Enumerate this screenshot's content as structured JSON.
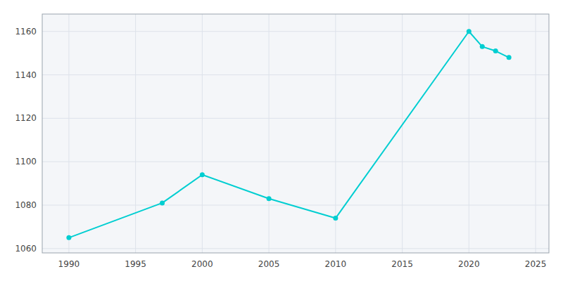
{
  "chart_data": {
    "type": "line",
    "x": [
      1990,
      1997,
      2000,
      2005,
      2010,
      2020,
      2021,
      2022,
      2023
    ],
    "values": [
      1065,
      1081,
      1094,
      1083,
      1074,
      1160,
      1153,
      1151,
      1148
    ],
    "color": "#00CED1",
    "marker": "circle",
    "xlim": [
      1988,
      2026
    ],
    "ylim": [
      1058,
      1168
    ],
    "xticks": [
      1990,
      1995,
      2000,
      2005,
      2010,
      2015,
      2020,
      2025
    ],
    "yticks": [
      1060,
      1080,
      1100,
      1120,
      1140,
      1160
    ],
    "grid": true
  }
}
